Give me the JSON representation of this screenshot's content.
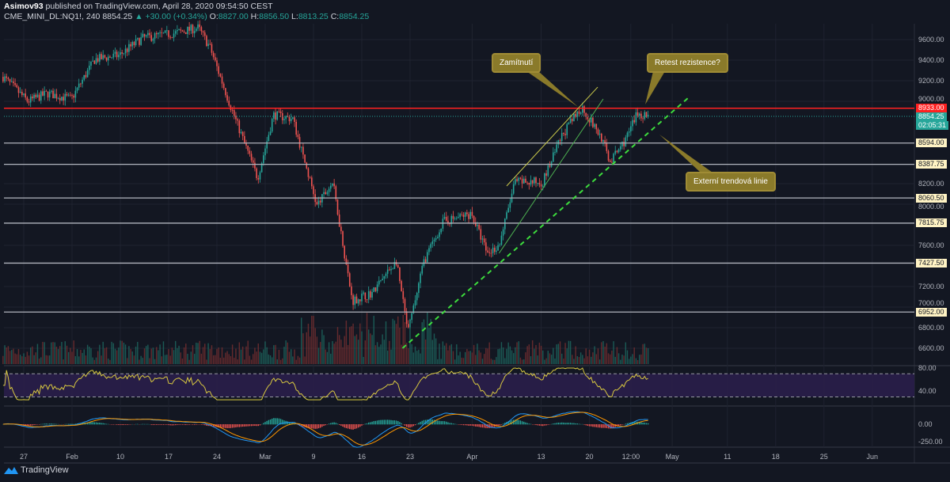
{
  "header": {
    "author": "Asimov93",
    "published": "published on TradingView.com, April 28, 2020 09:54:50 CEST",
    "symbol": "CME_MINI_DL:NQ1!, 240",
    "last": "8854.25",
    "change": "▲ +30.00 (+0.34%)",
    "o_label": "O:",
    "o": "8827.00",
    "h_label": "H:",
    "h": "8856.50",
    "l_label": "L:",
    "l": "8813.25",
    "c_label": "C:",
    "c": "8854.25"
  },
  "footer": {
    "brand": "TradingView"
  },
  "callouts": {
    "rejection": "Zamítnutí",
    "retest": "Retest rezistence?",
    "trendline": "Externí trendová linie"
  },
  "colors": {
    "bg": "#131722",
    "up": "#26a69a",
    "down": "#ef5350",
    "resistance": "#ff2020",
    "level": "#b2b5be",
    "label_bg": "#fff3c4",
    "channel": "#c8c84a",
    "trend": "#4caf50",
    "dashed": "#3ddc3d",
    "rsi": "#d8c840"
  },
  "chart_data": {
    "type": "candlestick",
    "title": "CME_MINI_DL:NQ1!, 240",
    "ylim": [
      6450,
      9750
    ],
    "y_ticks": [
      "9600.00",
      "9400.00",
      "9200.00",
      "9000.00",
      "8200.00",
      "8000.00",
      "7600.00",
      "7200.00",
      "7000.00",
      "6800.00",
      "6600.00"
    ],
    "x_ticks": [
      {
        "label": "27",
        "day": 0
      },
      {
        "label": "Feb",
        "day": 7
      },
      {
        "label": "10",
        "day": 14
      },
      {
        "label": "17",
        "day": 21
      },
      {
        "label": "24",
        "day": 28
      },
      {
        "label": "Mar",
        "day": 35
      },
      {
        "label": "9",
        "day": 42
      },
      {
        "label": "16",
        "day": 49
      },
      {
        "label": "23",
        "day": 56
      },
      {
        "label": "Apr",
        "day": 65
      },
      {
        "label": "13",
        "day": 75
      },
      {
        "label": "20",
        "day": 82
      },
      {
        "label": "12:00",
        "day": 88
      },
      {
        "label": "May",
        "day": 94
      },
      {
        "label": "11",
        "day": 102
      },
      {
        "label": "18",
        "day": 109
      },
      {
        "label": "25",
        "day": 116
      },
      {
        "label": "Jun",
        "day": 123
      }
    ],
    "price_path": [
      [
        -3,
        9238
      ],
      [
        0.6,
        8999
      ],
      [
        3.4,
        9077
      ],
      [
        6.9,
        9023
      ],
      [
        10.3,
        9408
      ],
      [
        13.8,
        9446
      ],
      [
        17.2,
        9615
      ],
      [
        21.8,
        9661
      ],
      [
        25.3,
        9715
      ],
      [
        27,
        9523
      ],
      [
        29.8,
        8985
      ],
      [
        33.9,
        8254
      ],
      [
        36.2,
        8869
      ],
      [
        39,
        8830
      ],
      [
        42.5,
        7985
      ],
      [
        44.8,
        8215
      ],
      [
        47.6,
        7062
      ],
      [
        50.5,
        7138
      ],
      [
        54,
        7446
      ],
      [
        55.7,
        6754
      ],
      [
        58,
        7446
      ],
      [
        60.8,
        7830
      ],
      [
        64.9,
        7908
      ],
      [
        67.2,
        7523
      ],
      [
        68.9,
        7600
      ],
      [
        71.2,
        8215
      ],
      [
        75.2,
        8215
      ],
      [
        78.1,
        8677
      ],
      [
        80.9,
        8946
      ],
      [
        83.8,
        8638
      ],
      [
        85,
        8408
      ],
      [
        87.3,
        8638
      ],
      [
        89,
        8885
      ],
      [
        90.7,
        8854.25
      ]
    ],
    "levels": [
      {
        "price": 8933,
        "label": "8933.00",
        "kind": "resistance"
      },
      {
        "price": 8854.25,
        "label": "8854.25",
        "kind": "last",
        "countdown": "02:05:31"
      },
      {
        "price": 8594,
        "label": "8594.00",
        "kind": "level"
      },
      {
        "price": 8387.75,
        "label": "8387.75",
        "kind": "level"
      },
      {
        "price": 8060.5,
        "label": "8060.50",
        "kind": "level"
      },
      {
        "price": 7815.75,
        "label": "7815.75",
        "kind": "level"
      },
      {
        "price": 7427.5,
        "label": "7427.50",
        "kind": "level"
      },
      {
        "price": 6952,
        "label": "6952.00",
        "kind": "level"
      }
    ],
    "trendlines": [
      {
        "name": "channel-upper",
        "from": [
          70,
          8177
        ],
        "to": [
          83.2,
          9138
        ],
        "style": "solid",
        "color": "channel"
      },
      {
        "name": "channel-lower",
        "from": [
          68.9,
          7523
        ],
        "to": [
          84,
          9023
        ],
        "style": "solid",
        "color": "trend"
      },
      {
        "name": "external-trendline",
        "from": [
          54.9,
          6600
        ],
        "to": [
          96.4,
          9038
        ],
        "style": "dashed",
        "color": "dashed"
      }
    ],
    "rsi": {
      "ticks": [
        "80.00",
        "40.00"
      ],
      "band": [
        30,
        70
      ]
    },
    "macd": {
      "ticks": [
        "0.00",
        "-250.00"
      ]
    }
  }
}
